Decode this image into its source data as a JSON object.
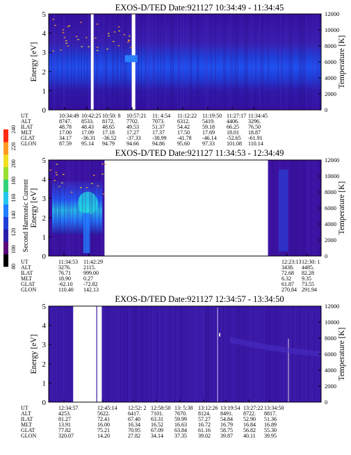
{
  "colorbar": {
    "label": "Second Harmonic Current",
    "ticks": [
      "80",
      "100",
      "120",
      "140",
      "160",
      "180",
      "200",
      "220",
      "240"
    ],
    "colors": [
      "#000000",
      "#5a0a7a",
      "#2a1fa8",
      "#1f3fd9",
      "#1f7fff",
      "#22c8ee",
      "#2fd47a",
      "#9be030",
      "#f0e020",
      "#ff9a20",
      "#ff2a10"
    ]
  },
  "chart_data": [
    {
      "type": "heatmap",
      "title": "EXOS-D/TED   Date:921127   10:34:49 - 11:34:45",
      "ylabel": "Energy [eV]",
      "ylabel_right": "Temperature [K]",
      "ylim": [
        0,
        5
      ],
      "yticks": [
        "0",
        "1",
        "2",
        "3",
        "4",
        "5"
      ],
      "ylim_right": [
        0,
        12000
      ],
      "yticks_right": [
        "0",
        "2000",
        "4000",
        "6000",
        "8000",
        "10000",
        "12000"
      ],
      "info_rows": [
        "UT",
        "ALT",
        "ILAT",
        "MLT",
        "GLAT",
        "GLON"
      ],
      "info_columns": [
        [
          "10:34:49",
          "8747.",
          "48.78",
          "17.00",
          "34.17",
          "87.59"
        ],
        [
          "10:42:25",
          "8533.",
          "48.43",
          "17.09",
          "-36.31",
          "95.14"
        ],
        [
          "10:50: 8",
          "8172.",
          "48.65",
          "17.18",
          "-36.52",
          "94.79"
        ],
        [
          "10:57:21",
          "7702.",
          "49.53",
          "17.27",
          "-37.33",
          "94.66"
        ],
        [
          "11: 4:54",
          "7073.",
          "51.37",
          "17.37",
          "-38.99",
          "94.86"
        ],
        [
          "11:12:22",
          "6312.",
          "54.42",
          "17.50",
          "-41.78",
          "95.60"
        ],
        [
          "11:19:50",
          "5419.",
          "59.18",
          "17.69",
          "-46.14",
          "97.33"
        ],
        [
          "11:27:17",
          "4406.",
          "66.25",
          "18.01",
          "-52.65",
          "101.08"
        ],
        [
          "11:34:45",
          "3296.",
          "76.50",
          "18.87",
          "-61.91",
          "110.14"
        ]
      ],
      "data_gaps_ut": [
        "10:42:00",
        "10:56:10"
      ]
    },
    {
      "type": "heatmap",
      "title": "EXOS-D/TED   Date:921127   11:34:53 - 12:34:49",
      "ylabel": "Energy [eV]",
      "ylabel_right": "Temperature [K]",
      "ylim": [
        0,
        5
      ],
      "yticks": [
        "0",
        "1",
        "2",
        "3",
        "4",
        "5"
      ],
      "ylim_right": [
        0,
        12000
      ],
      "yticks_right": [
        "0",
        "2000",
        "4000",
        "6000",
        "8000",
        "10000",
        "12000"
      ],
      "info_rows": [
        "UT",
        "ALT",
        "ILAT",
        "MLT",
        "GLAT",
        "GLON"
      ],
      "info_columns": [
        [
          "11:34:53",
          "3276.",
          "76.71",
          "18.90",
          "-62.10",
          "110.40"
        ],
        [
          "11:42:29",
          "2115.",
          "999.00",
          "0.27",
          "-72.82",
          "142.13"
        ],
        [
          "12:23:13",
          "3438.",
          "72.68",
          "6.32",
          "61.87",
          "270.84"
        ],
        [
          "12:30: 1",
          "4485.",
          "82.28",
          "9.35",
          "73.55",
          "291.94"
        ]
      ],
      "data_gaps_ut": [
        "11:43:30 - 12:22:30"
      ]
    },
    {
      "type": "heatmap",
      "title": "EXOS-D/TED   Date:921127   12:34:57 - 13:34:50",
      "ylabel": "Energy [eV]",
      "ylabel_right": "Temperature [K]",
      "ylim": [
        0,
        5
      ],
      "yticks": [
        "0",
        "1",
        "2",
        "3",
        "4",
        "5"
      ],
      "ylim_right": [
        0,
        12000
      ],
      "yticks_right": [
        "0",
        "2000",
        "4000",
        "6000",
        "8000",
        "10000",
        "12000"
      ],
      "info_rows": [
        "UT",
        "ALT",
        "ILAT",
        "MLT",
        "GLAT",
        "GLON"
      ],
      "info_columns": [
        [
          "12:34:57",
          "4253.",
          "81.27",
          "13.91",
          "77.82",
          "320.07"
        ],
        [
          "12:45:14",
          "5622.",
          "72.41",
          "16.00",
          "75.21",
          "14.20"
        ],
        [
          "12:52: 2",
          "6417.",
          "67.40",
          "16.34",
          "70.95",
          "27.82"
        ],
        [
          "12:58:50",
          "7101.",
          "63.31",
          "16.52",
          "67.09",
          "34.14"
        ],
        [
          "13: 5:38",
          "7670.",
          "59.99",
          "16.63",
          "63.84",
          "37.35"
        ],
        [
          "13:12:26",
          "8124.",
          "57.27",
          "16.72",
          "61.16",
          "39.02"
        ],
        [
          "13:19:54",
          "8491.",
          "54.84",
          "16.79",
          "58.75",
          "39.87"
        ],
        [
          "13:27:22",
          "8722.",
          "52.90",
          "16.84",
          "56.82",
          "40.11"
        ],
        [
          "13:34:50",
          "8817.",
          "51.36",
          "16.89",
          "55.30",
          "39.95"
        ]
      ],
      "data_gaps_ut": [
        "12:39:50 - 12:44:00",
        "12:45:40"
      ]
    }
  ]
}
